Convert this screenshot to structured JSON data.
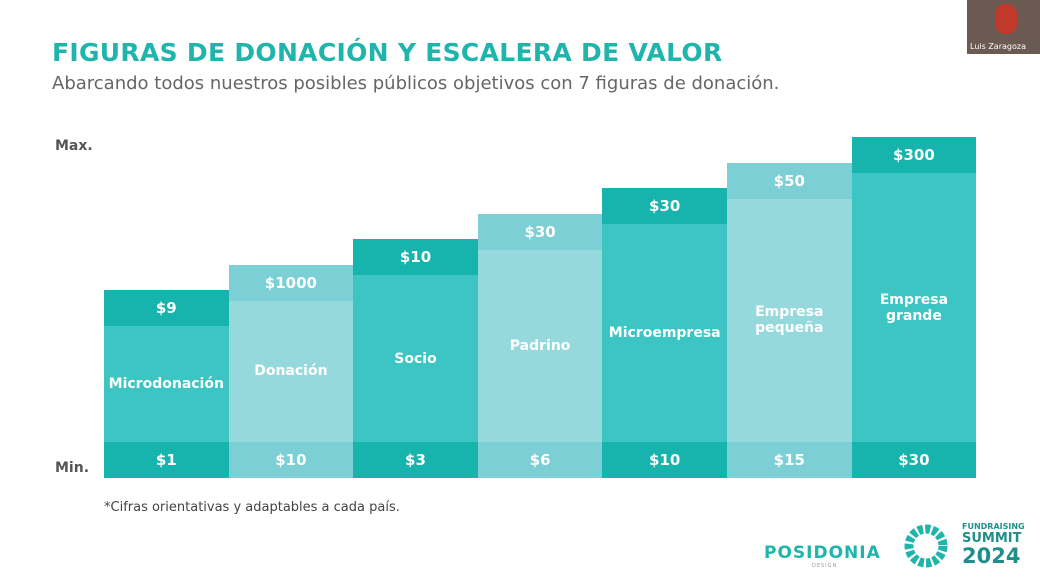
{
  "header": {
    "title": "FIGURAS DE DONACIÓN Y ESCALERA DE VALOR",
    "subtitle": "Abarcando todos nuestros posibles públicos objetivos con 7 figuras de donación."
  },
  "axis": {
    "max": "Max.",
    "min": "Min."
  },
  "columns": [
    {
      "label": "Microdonación",
      "max": "$9",
      "min": "$1"
    },
    {
      "label": "Donación",
      "max": "$1000",
      "min": "$10"
    },
    {
      "label": "Socio",
      "max": "$10",
      "min": "$3"
    },
    {
      "label": "Padrino",
      "max": "$30",
      "min": "$6"
    },
    {
      "label": "Microempresa",
      "max": "$30",
      "min": "$10"
    },
    {
      "label": "Empresa pequeña",
      "max": "$50",
      "min": "$15"
    },
    {
      "label": "Empresa grande",
      "max": "$300",
      "min": "$30"
    }
  ],
  "footnote": "*Cifras orientativas y adaptables a cada país.",
  "logos": {
    "brand": "POSIDONIA",
    "brand_sub": "DESIGN",
    "event_line1": "FUNDRAISING",
    "event_line2": "SUMMIT",
    "event_line3": "2024"
  },
  "webcam": {
    "name": "Luis Zaragoza"
  }
}
